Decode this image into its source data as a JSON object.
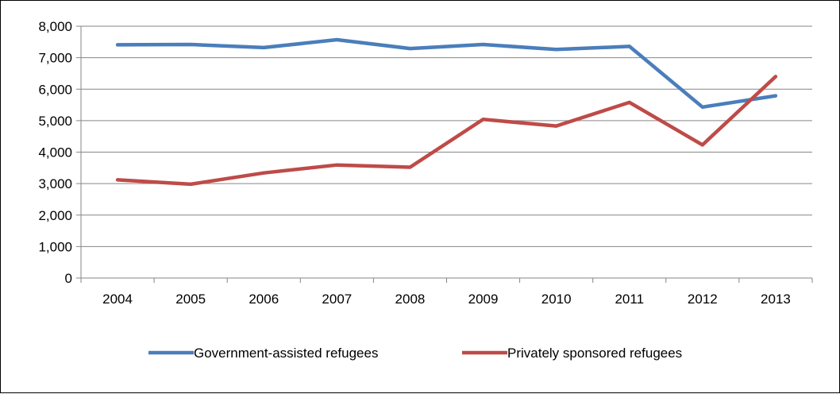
{
  "chart_data": {
    "type": "line",
    "title": "",
    "xlabel": "",
    "ylabel": "",
    "categories": [
      "2004",
      "2005",
      "2006",
      "2007",
      "2008",
      "2009",
      "2010",
      "2011",
      "2012",
      "2013"
    ],
    "ylim": [
      0,
      8000
    ],
    "yticks": [
      0,
      1000,
      2000,
      3000,
      4000,
      5000,
      6000,
      7000,
      8000
    ],
    "ytick_labels": [
      "0",
      "1,000",
      "2,000",
      "3,000",
      "4,000",
      "5,000",
      "6,000",
      "7,000",
      "8,000"
    ],
    "grid": "horizontal",
    "legend_position": "bottom",
    "series": [
      {
        "name": "Government-assisted refugees",
        "color": "#4a7ebb",
        "values": [
          7410,
          7420,
          7320,
          7570,
          7290,
          7420,
          7260,
          7360,
          5430,
          5790
        ]
      },
      {
        "name": "Privately sponsored refugees",
        "color": "#be4b48",
        "values": [
          3120,
          2980,
          3340,
          3590,
          3520,
          5040,
          4830,
          5580,
          4230,
          6400
        ]
      }
    ]
  }
}
